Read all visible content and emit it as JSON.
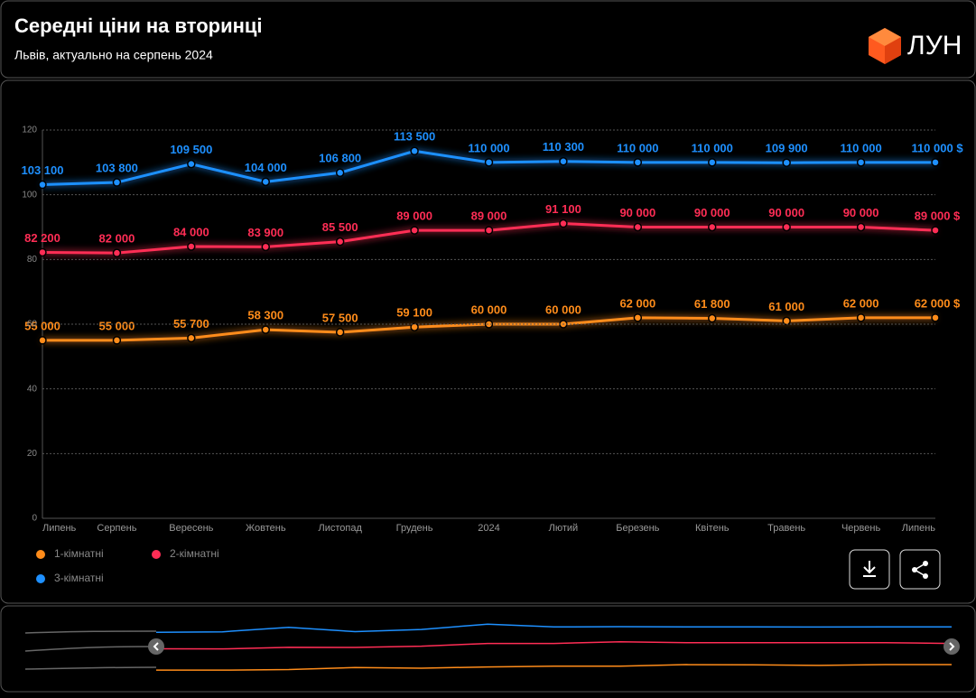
{
  "header": {
    "title": "Середні ціни на вторинці",
    "subtitle": "Львів, актуально на серпень 2024",
    "logo": "ЛУН"
  },
  "chart_data": {
    "type": "line",
    "categories": [
      "Липень",
      "Серпень",
      "Вересень",
      "Жовтень",
      "Листопад",
      "Грудень",
      "2024",
      "Лютий",
      "Березень",
      "Квітень",
      "Травень",
      "Червень",
      "Липень"
    ],
    "ylim": [
      0,
      120
    ],
    "yticks": [
      0,
      20,
      40,
      60,
      80,
      100,
      120
    ],
    "grid": true,
    "series": [
      {
        "name": "1-кімнатні",
        "color": "#ff8c1a",
        "values": [
          55,
          55,
          55.7,
          58.3,
          57.5,
          59.1,
          60,
          60,
          62,
          61.8,
          61,
          62,
          62
        ],
        "value_labels": [
          "55 000",
          "55 000",
          "55 700",
          "58 300",
          "57 500",
          "59 100",
          "60 000",
          "60 000",
          "62 000",
          "61 800",
          "61 000",
          "62 000",
          "62 000 $"
        ]
      },
      {
        "name": "2-кімнатні",
        "color": "#ff2d55",
        "values": [
          82.2,
          82,
          84,
          83.9,
          85.5,
          89,
          89,
          91.1,
          90,
          90,
          90,
          90,
          89
        ],
        "value_labels": [
          "82 200",
          "82 000",
          "84 000",
          "83 900",
          "85 500",
          "89 000",
          "89 000",
          "91 100",
          "90 000",
          "90 000",
          "90 000",
          "90 000",
          "89 000 $"
        ]
      },
      {
        "name": "3-кімнатні",
        "color": "#1e90ff",
        "values": [
          103.1,
          103.8,
          109.5,
          104,
          106.8,
          113.5,
          110,
          110.3,
          110,
          110,
          109.9,
          110,
          110
        ],
        "value_labels": [
          "103 100",
          "103 800",
          "109 500",
          "104 000",
          "106 800",
          "113 500",
          "110 000",
          "110 300",
          "110 000",
          "110 000",
          "109 900",
          "110 000",
          "110 000 $"
        ]
      }
    ]
  }
}
